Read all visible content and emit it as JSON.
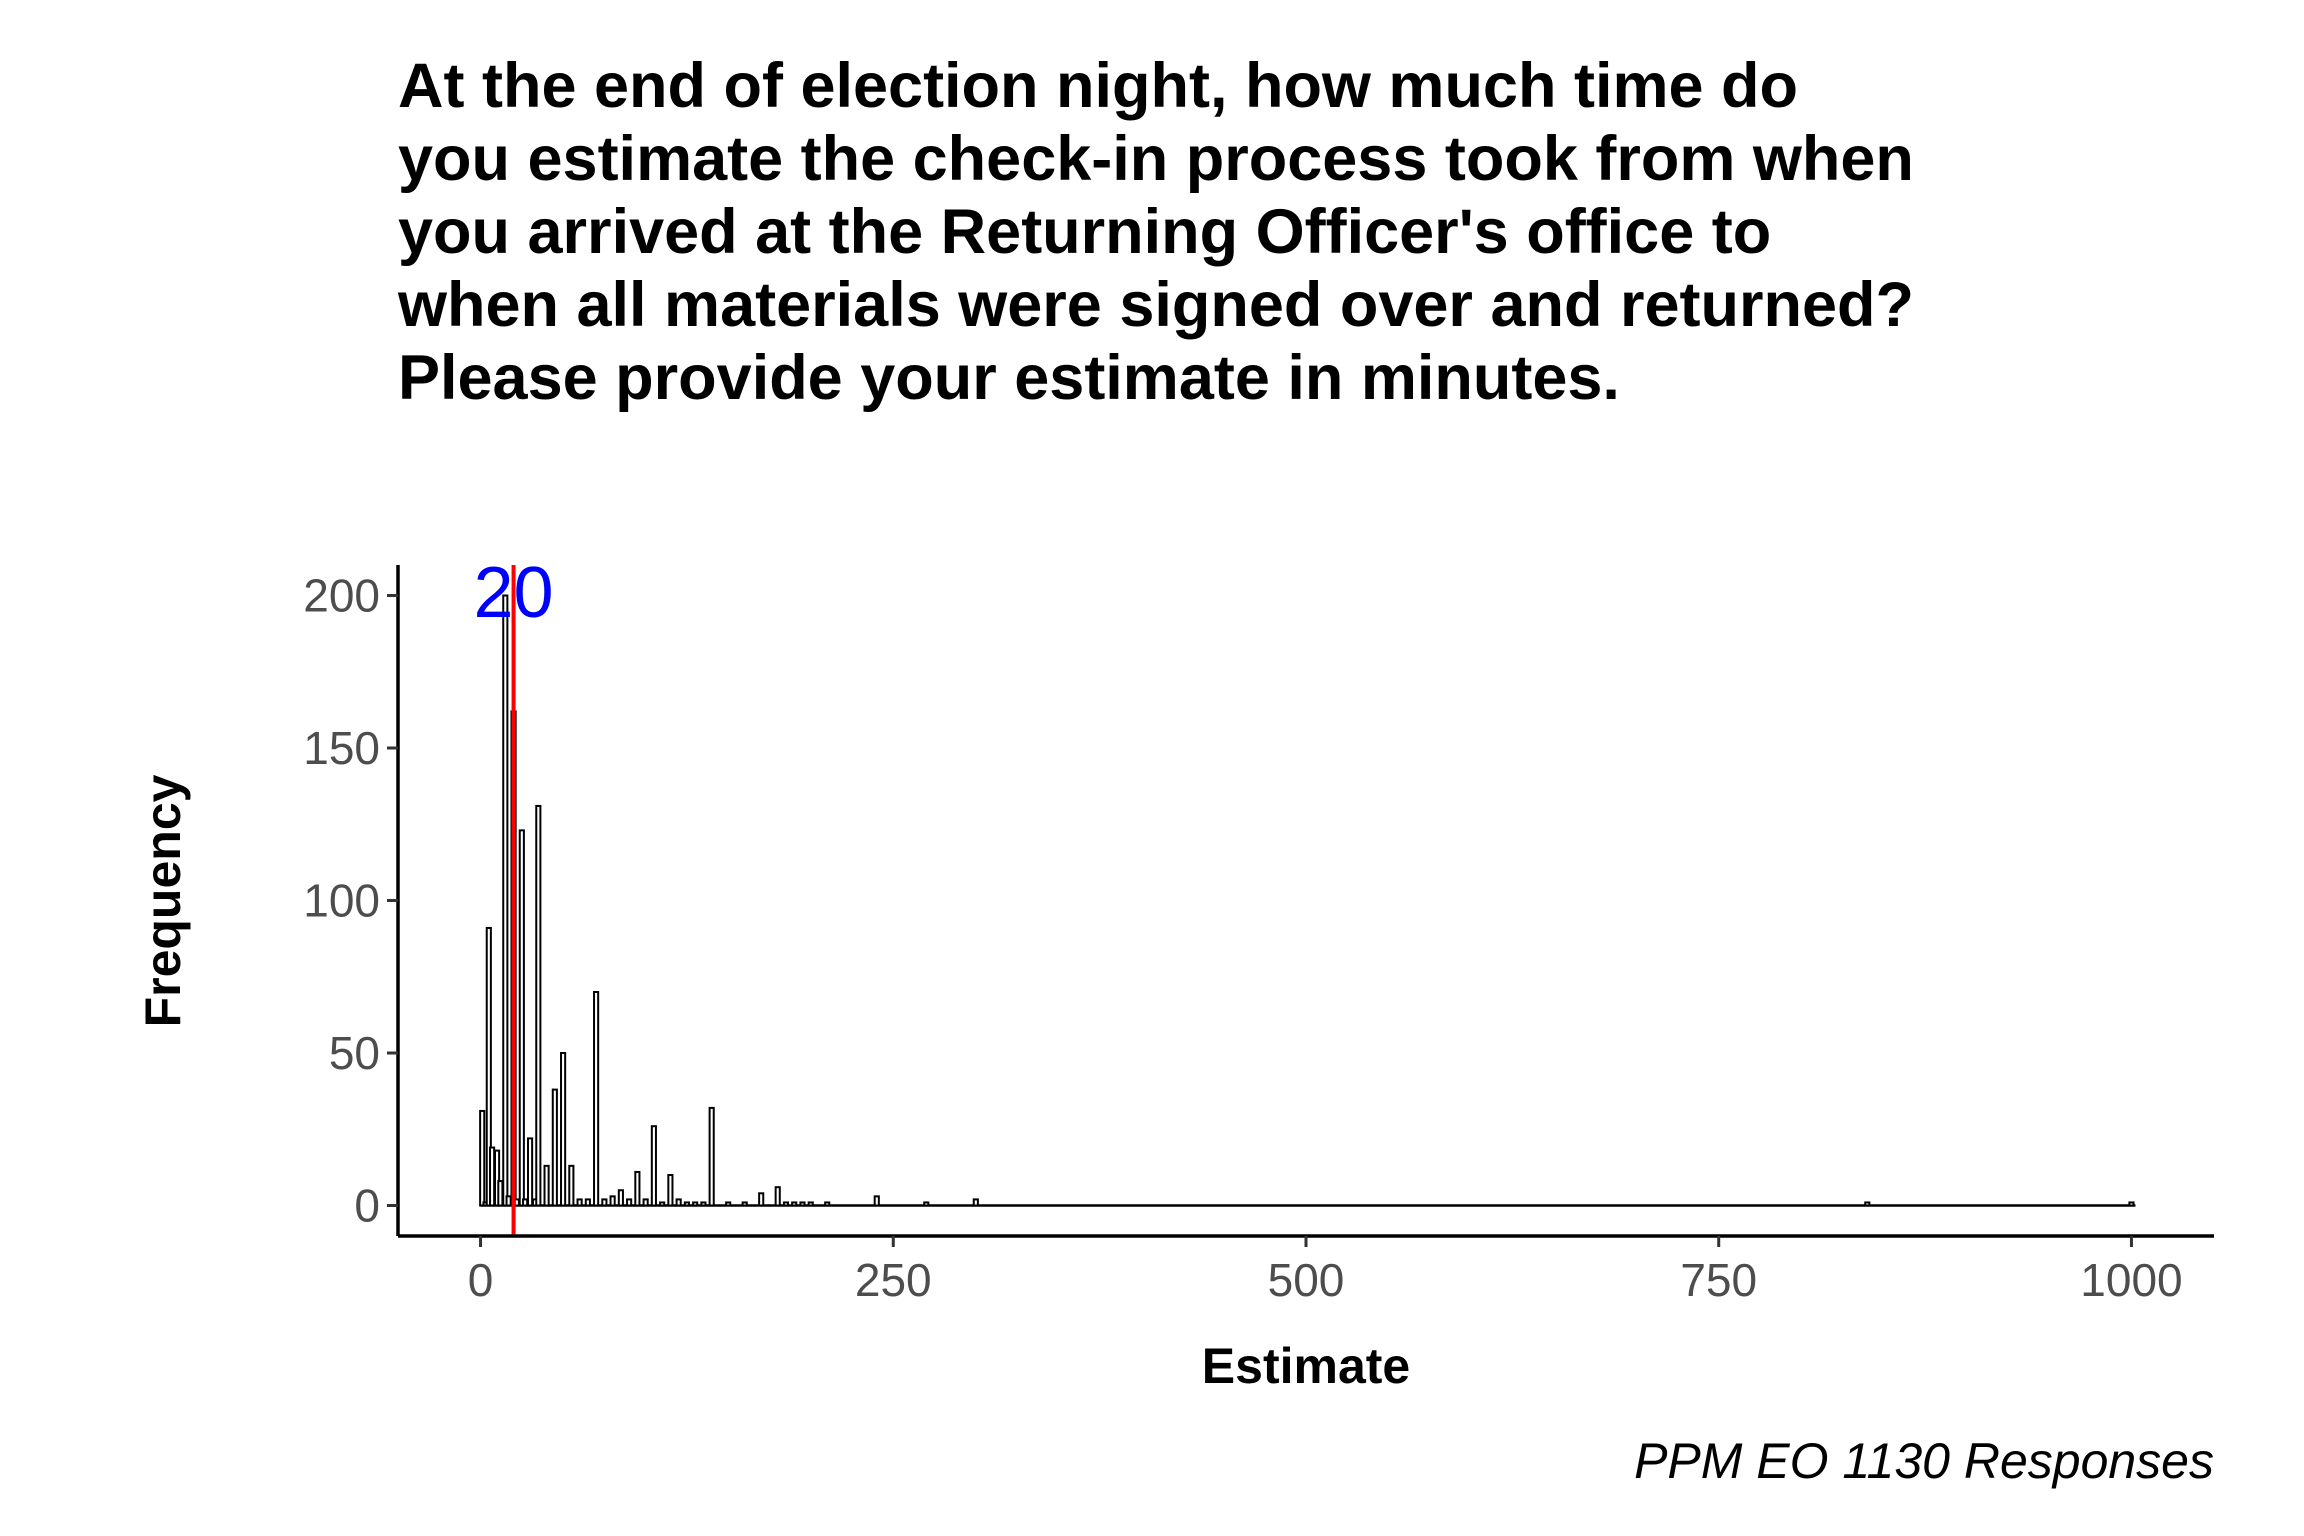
{
  "chart_data": {
    "type": "bar",
    "title_lines": [
      "At the end of election night, how much time do",
      "you estimate the check-in process took from when",
      "you arrived at the Returning Officer's office to",
      "when all materials were signed over and returned?",
      "Please provide your estimate in minutes."
    ],
    "xlabel": "Estimate",
    "ylabel": "Frequency",
    "caption": "PPM EO 1130 Responses",
    "xlim": [
      -50,
      1050
    ],
    "ylim": [
      -10,
      210
    ],
    "x_ticks": [
      0,
      250,
      500,
      750,
      1000
    ],
    "x_tick_labels": [
      "0",
      "250",
      "500",
      "750",
      "1000"
    ],
    "y_ticks": [
      0,
      50,
      100,
      150,
      200
    ],
    "y_tick_labels": [
      "0",
      "50",
      "100",
      "150",
      "200"
    ],
    "bin_width": 2.5,
    "bars": [
      {
        "x": 1,
        "count": 31
      },
      {
        "x": 3,
        "count": 1
      },
      {
        "x": 5,
        "count": 91
      },
      {
        "x": 7,
        "count": 19
      },
      {
        "x": 10,
        "count": 18
      },
      {
        "x": 12,
        "count": 8
      },
      {
        "x": 15,
        "count": 200
      },
      {
        "x": 17,
        "count": 3
      },
      {
        "x": 20,
        "count": 162
      },
      {
        "x": 22,
        "count": 2
      },
      {
        "x": 25,
        "count": 123
      },
      {
        "x": 27,
        "count": 2
      },
      {
        "x": 30,
        "count": 22
      },
      {
        "x": 33,
        "count": 2
      },
      {
        "x": 35,
        "count": 131
      },
      {
        "x": 40,
        "count": 13
      },
      {
        "x": 45,
        "count": 38
      },
      {
        "x": 50,
        "count": 50
      },
      {
        "x": 55,
        "count": 13
      },
      {
        "x": 60,
        "count": 2
      },
      {
        "x": 65,
        "count": 2
      },
      {
        "x": 70,
        "count": 70
      },
      {
        "x": 75,
        "count": 2
      },
      {
        "x": 80,
        "count": 3
      },
      {
        "x": 85,
        "count": 5
      },
      {
        "x": 90,
        "count": 2
      },
      {
        "x": 95,
        "count": 11
      },
      {
        "x": 100,
        "count": 2
      },
      {
        "x": 105,
        "count": 26
      },
      {
        "x": 110,
        "count": 1
      },
      {
        "x": 115,
        "count": 10
      },
      {
        "x": 120,
        "count": 2
      },
      {
        "x": 125,
        "count": 1
      },
      {
        "x": 130,
        "count": 1
      },
      {
        "x": 135,
        "count": 1
      },
      {
        "x": 140,
        "count": 32
      },
      {
        "x": 150,
        "count": 1
      },
      {
        "x": 160,
        "count": 1
      },
      {
        "x": 170,
        "count": 4
      },
      {
        "x": 180,
        "count": 6
      },
      {
        "x": 185,
        "count": 1
      },
      {
        "x": 190,
        "count": 1
      },
      {
        "x": 195,
        "count": 1
      },
      {
        "x": 200,
        "count": 1
      },
      {
        "x": 210,
        "count": 1
      },
      {
        "x": 240,
        "count": 3
      },
      {
        "x": 270,
        "count": 1
      },
      {
        "x": 300,
        "count": 2
      },
      {
        "x": 840,
        "count": 1
      },
      {
        "x": 1000,
        "count": 1
      }
    ],
    "reference_line": {
      "x": 20,
      "label": "20",
      "color": "#ff0000",
      "label_color": "#0000ff"
    },
    "grid": false,
    "bar_fill": "#ffffff",
    "bar_stroke": "#000000"
  }
}
